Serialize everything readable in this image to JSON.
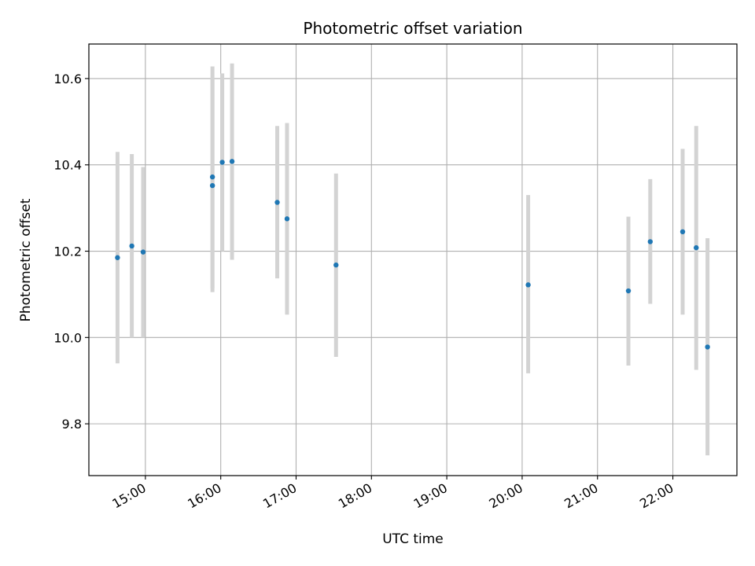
{
  "chart_data": {
    "type": "scatter",
    "title": "Photometric offset variation",
    "xlabel": "UTC time",
    "ylabel": "Photometric offset",
    "x_unit": "hours UTC",
    "xlim": [
      14.25,
      22.85
    ],
    "ylim": [
      9.68,
      10.68
    ],
    "x_ticks": [
      {
        "value": 15,
        "label": "15:00"
      },
      {
        "value": 16,
        "label": "16:00"
      },
      {
        "value": 17,
        "label": "17:00"
      },
      {
        "value": 18,
        "label": "18:00"
      },
      {
        "value": 19,
        "label": "19:00"
      },
      {
        "value": 20,
        "label": "20:00"
      },
      {
        "value": 21,
        "label": "21:00"
      },
      {
        "value": 22,
        "label": "22:00"
      }
    ],
    "y_ticks": [
      {
        "value": 9.8,
        "label": "9.8"
      },
      {
        "value": 10.0,
        "label": "10.0"
      },
      {
        "value": 10.2,
        "label": "10.2"
      },
      {
        "value": 10.4,
        "label": "10.4"
      },
      {
        "value": 10.6,
        "label": "10.6"
      }
    ],
    "grid": true,
    "point_color": "#1f77b4",
    "errorbar_color": "#d3d3d3",
    "points": [
      {
        "x": 14.63,
        "y": 10.185,
        "low": 9.94,
        "high": 10.43
      },
      {
        "x": 14.82,
        "y": 10.212,
        "low": 10.0,
        "high": 10.425
      },
      {
        "x": 14.97,
        "y": 10.198,
        "low": 10.0,
        "high": 10.395
      },
      {
        "x": 15.89,
        "y": 10.372,
        "low": 10.115,
        "high": 10.628
      },
      {
        "x": 15.89,
        "y": 10.352,
        "low": 10.105,
        "high": 10.598
      },
      {
        "x": 16.02,
        "y": 10.406,
        "low": 10.2,
        "high": 10.612
      },
      {
        "x": 16.15,
        "y": 10.408,
        "low": 10.18,
        "high": 10.635
      },
      {
        "x": 16.75,
        "y": 10.313,
        "low": 10.137,
        "high": 10.49
      },
      {
        "x": 16.88,
        "y": 10.275,
        "low": 10.053,
        "high": 10.497
      },
      {
        "x": 17.53,
        "y": 10.168,
        "low": 9.955,
        "high": 10.38
      },
      {
        "x": 20.08,
        "y": 10.122,
        "low": 9.917,
        "high": 10.33
      },
      {
        "x": 21.41,
        "y": 10.108,
        "low": 9.935,
        "high": 10.28
      },
      {
        "x": 21.7,
        "y": 10.222,
        "low": 10.078,
        "high": 10.367
      },
      {
        "x": 22.13,
        "y": 10.245,
        "low": 10.053,
        "high": 10.437
      },
      {
        "x": 22.31,
        "y": 10.208,
        "low": 9.925,
        "high": 10.49
      },
      {
        "x": 22.46,
        "y": 9.978,
        "low": 9.727,
        "high": 10.23
      }
    ]
  }
}
